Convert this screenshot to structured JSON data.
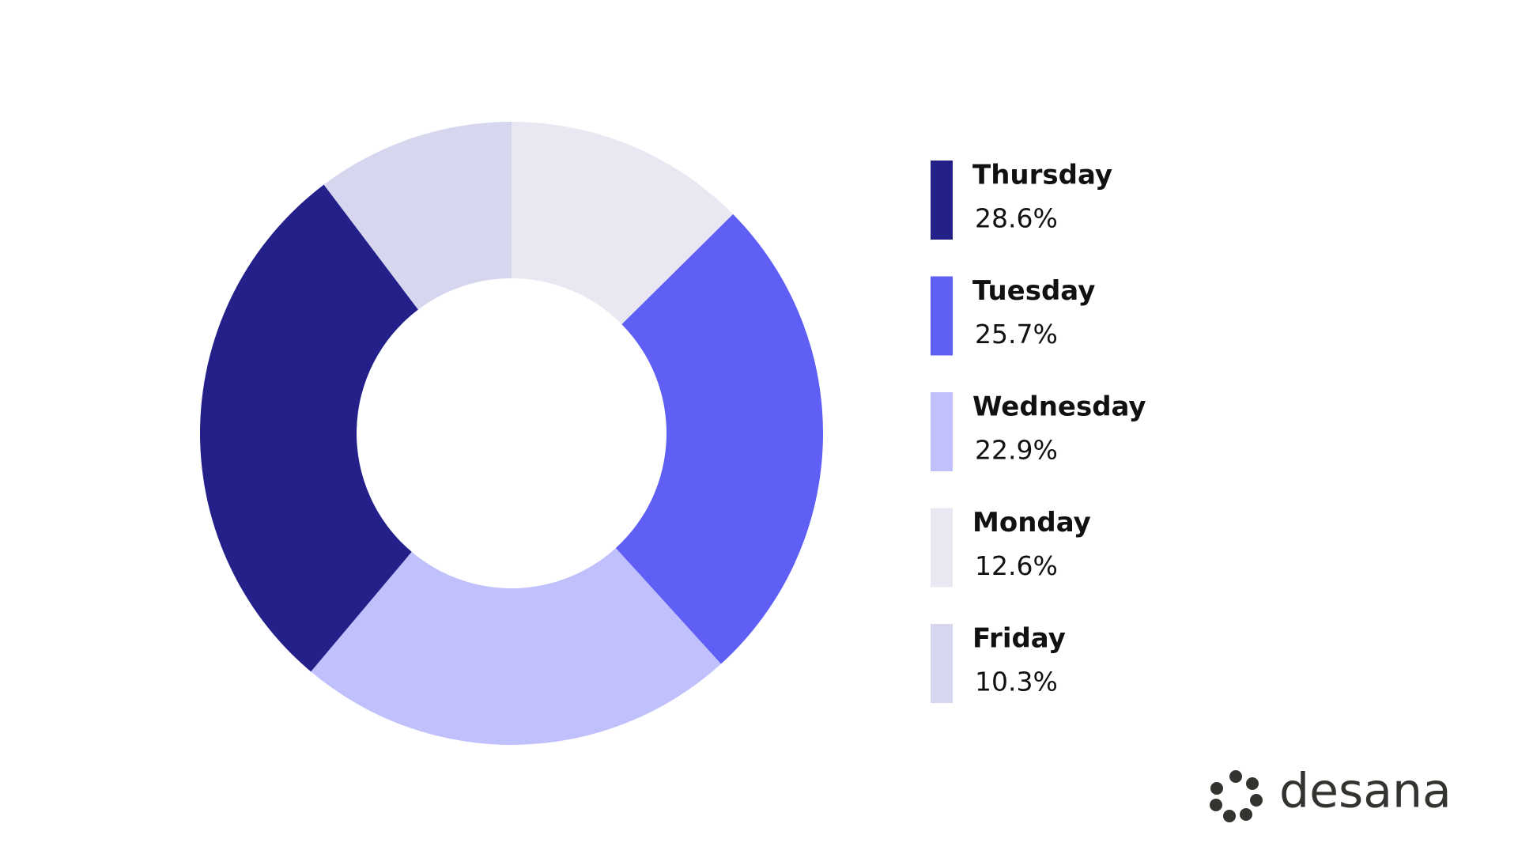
{
  "chart_data": {
    "type": "pie",
    "donut": true,
    "categories": [
      "Monday",
      "Tuesday",
      "Wednesday",
      "Thursday",
      "Friday"
    ],
    "values": [
      12.6,
      25.7,
      22.9,
      28.6,
      10.3
    ],
    "value_labels": [
      "12.6%",
      "25.7%",
      "22.9%",
      "28.6%",
      "10.3%"
    ],
    "colors": [
      "#e9e8f2",
      "#5f5ff6",
      "#c0c0fd",
      "#24208a",
      "#d6d6ef"
    ]
  },
  "logo": "desana"
}
